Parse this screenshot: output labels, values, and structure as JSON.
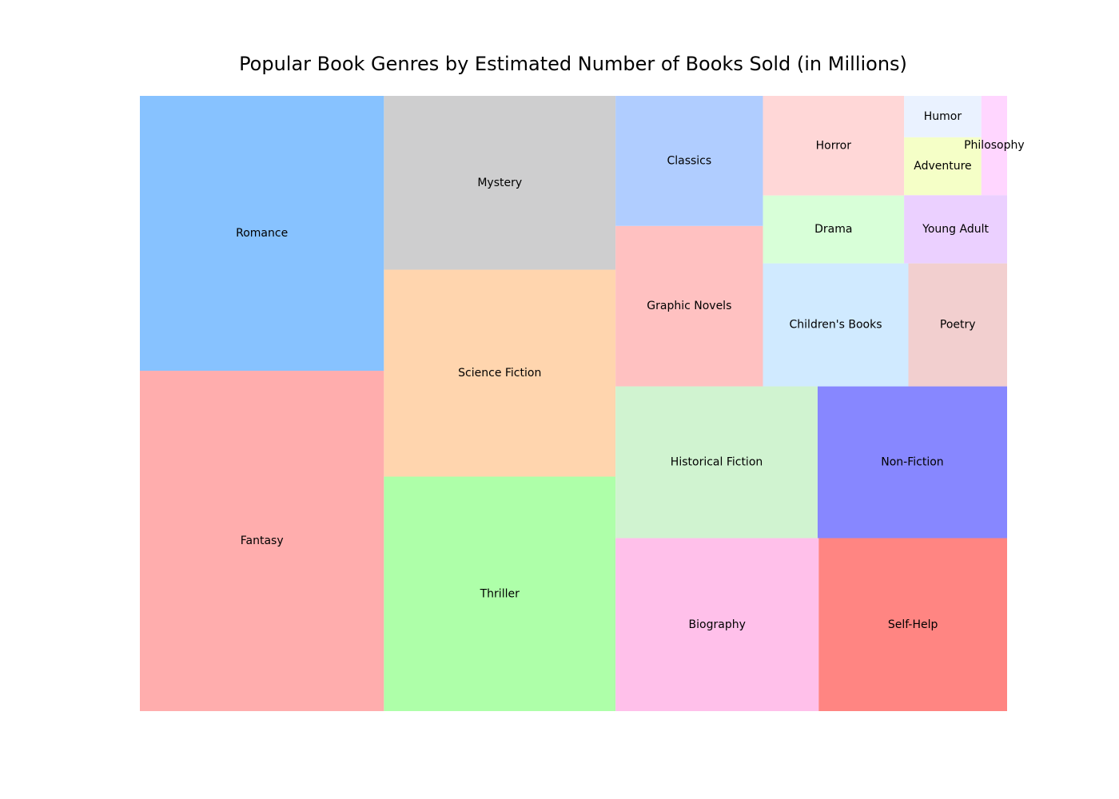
{
  "chart_data": {
    "type": "treemap",
    "title": "Popular Book Genres by Estimated Number of Books Sold (in Millions)",
    "categories": [
      "Fantasy",
      "Romance",
      "Thriller",
      "Science Fiction",
      "Mystery",
      "Biography",
      "Self-Help",
      "Historical Fiction",
      "Non-Fiction",
      "Graphic Novels",
      "Classics",
      "Children's Books",
      "Poetry",
      "Drama",
      "Horror",
      "Young Adult",
      "Adventure",
      "Humor",
      "Philosophy"
    ],
    "values": [
      130,
      105,
      85,
      75,
      63,
      55,
      51,
      48,
      45,
      37,
      30,
      28,
      19,
      15,
      22,
      11,
      7,
      5,
      4
    ],
    "colors": [
      "#ffadad",
      "#87c2ff",
      "#aeffa9",
      "#ffd5ae",
      "#cececf",
      "#ffc0ea",
      "#ff8582",
      "#d0f3d0",
      "#8787ff",
      "#ffc1c1",
      "#b0cdff",
      "#d0eaff",
      "#f2cfcf",
      "#d8ffd8",
      "#ffd7d7",
      "#ebd0ff",
      "#f5ffc7",
      "#eaf2ff",
      "#ffd6ff"
    ],
    "xlabel": "",
    "ylabel": "",
    "grid": false,
    "legend": "none"
  }
}
